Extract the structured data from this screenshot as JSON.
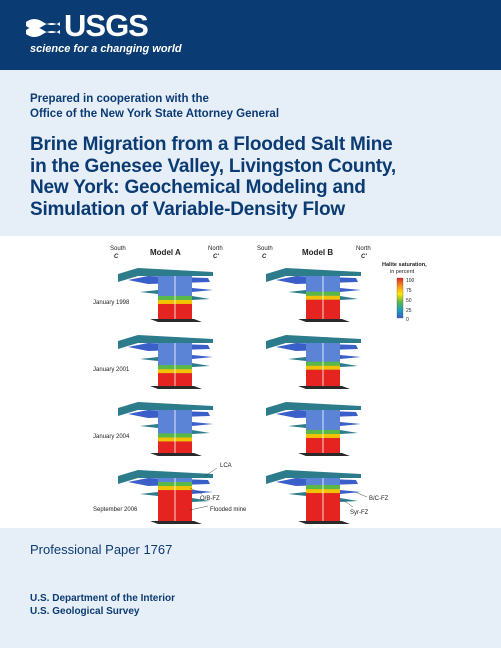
{
  "header": {
    "logo_text": "USGS",
    "tagline": "science for a changing world",
    "colors": {
      "banner": "#0b3b73",
      "panel": "#e6eef7",
      "text": "#0b3b73"
    }
  },
  "cooperation": {
    "line1": "Prepared in cooperation with the",
    "line2": "Office of the New York State Attorney General"
  },
  "title": {
    "line1": "Brine Migration from a Flooded Salt Mine",
    "line2": "in the Genesee Valley, Livingston County,",
    "line3": "New York:  Geochemical Modeling and",
    "line4": "Simulation of Variable-Density Flow"
  },
  "figure": {
    "model_a": {
      "title": "Model A",
      "south": "South",
      "south_letter": "C",
      "north": "North",
      "north_letter": "C'"
    },
    "model_b": {
      "title": "Model B",
      "south": "South",
      "south_letter": "C",
      "north": "North",
      "north_letter": "C'"
    },
    "dates": [
      "January 1998",
      "January 2001",
      "January 2004",
      "September 2006"
    ],
    "legend": {
      "title_line1": "Halite saturation,",
      "title_line2": "in percent",
      "ticks": [
        "100",
        "75",
        "50",
        "25",
        "0"
      ],
      "colors": [
        "#e52421",
        "#f7941d",
        "#ffe600",
        "#59b947",
        "#1aa3b8",
        "#3a5fc8"
      ]
    },
    "labels": {
      "lca": "LCA",
      "obfz": "O/B-FZ",
      "flooded": "Flooded mine",
      "bcfz": "B/C-FZ",
      "syrfz": "Syr-FZ"
    },
    "model_fill_levels": {
      "model_a": [
        0.35,
        0.3,
        0.27,
        0.72
      ],
      "model_b": [
        0.45,
        0.38,
        0.35,
        0.65
      ]
    }
  },
  "footer": {
    "series": "Professional Paper 1767",
    "dept_line1": "U.S. Department of the Interior",
    "dept_line2": "U.S. Geological Survey"
  }
}
